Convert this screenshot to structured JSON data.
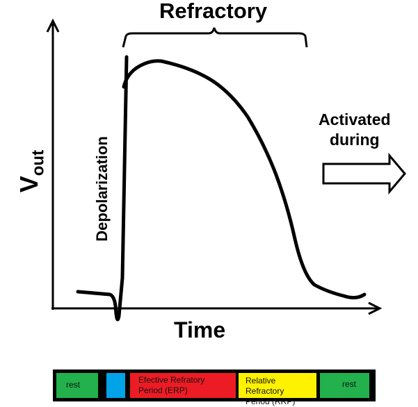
{
  "diagram": {
    "title": "Refractory",
    "x_axis_label": "Time",
    "y_axis_label": {
      "main": "V",
      "sub": "out"
    },
    "rising_phase_label": "Depolarization",
    "side_note": {
      "line1": "Activated",
      "line2": "during"
    },
    "colors": {
      "curve": "#000000",
      "rest": "#22b14c",
      "brief": "#00a2e8",
      "erp": "#ed1c24",
      "rrp": "#fff200"
    },
    "phase_bar": [
      {
        "id": "rest-1",
        "label": "rest",
        "color": "#22b14c"
      },
      {
        "id": "brief",
        "label": "",
        "color": "#00a2e8"
      },
      {
        "id": "erp",
        "label": "Efective Refratory Period (ERP)",
        "line1": "Efective Refratory",
        "line2": "Period (ERP)",
        "color": "#ed1c24"
      },
      {
        "id": "rrp",
        "label": "Relative Refractory Period (RRP)",
        "line1": "Relative Refractory",
        "line2": "Period (RRP)",
        "color": "#fff200"
      },
      {
        "id": "rest-2",
        "label": "rest",
        "color": "#22b14c"
      }
    ]
  }
}
